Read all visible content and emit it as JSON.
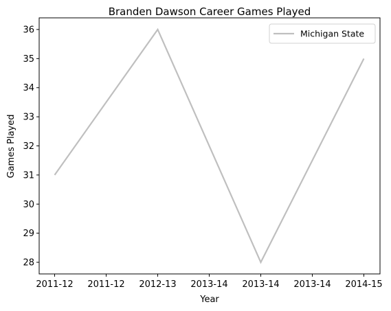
{
  "chart_data": {
    "type": "line",
    "title": "Branden Dawson Career Games Played",
    "xlabel": "Year",
    "ylabel": "Games Played",
    "x_tick_labels": [
      "2011-12",
      "2011-12",
      "2012-13",
      "2013-14",
      "2013-14",
      "2013-14",
      "2014-15"
    ],
    "y_ticks": [
      28,
      29,
      30,
      31,
      32,
      33,
      34,
      35,
      36
    ],
    "ylim": [
      27.6,
      36.4
    ],
    "grid": false,
    "legend_position": "top-right",
    "series": [
      {
        "name": "Michigan State",
        "color": "#bfbfbf",
        "x": [
          "2011-12",
          "2012-13",
          "2013-14",
          "2014-15"
        ],
        "values": [
          31,
          36,
          28,
          35
        ]
      }
    ]
  }
}
